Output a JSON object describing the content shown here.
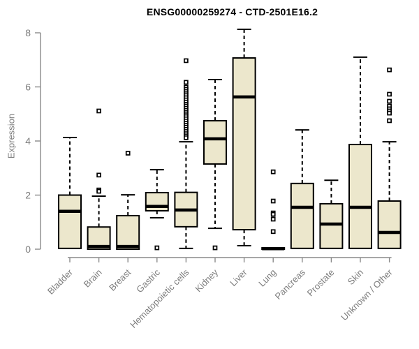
{
  "chart_data": {
    "type": "boxplot",
    "title": "ENSG00000259274 - CTD-2501E16.2",
    "ylabel": "Expression",
    "xlabel": "",
    "ylim": [
      0,
      8.3
    ],
    "yticks": [
      "0",
      "2",
      "4",
      "6",
      "8"
    ],
    "grid": false,
    "legend": "none",
    "box_fill": "#ECE7CC",
    "box_stroke": "#000000",
    "median_color": "#000000",
    "whisker_color": "#000000",
    "axis_color": "#8a8a8a",
    "label_color": "#7d7d7d",
    "title_color": "#000000",
    "categories": [
      "Bladder",
      "Brain",
      "Breast",
      "Gastric",
      "Hematopoietic cells",
      "Kidney",
      "Liver",
      "Lung",
      "Pancreas",
      "Prostate",
      "Skin",
      "Unknown / Other"
    ],
    "series": [
      {
        "name": "Bladder",
        "low": 0.03,
        "q1": 0.03,
        "median": 1.4,
        "q3": 2.0,
        "high": 4.13,
        "outliers": []
      },
      {
        "name": "Brain",
        "low": 0.0,
        "q1": 0.0,
        "median": 0.1,
        "q3": 0.82,
        "high": 1.96,
        "outliers": [
          5.11,
          2.74,
          2.19,
          2.14
        ]
      },
      {
        "name": "Breast",
        "low": 0.0,
        "q1": 0.0,
        "median": 0.1,
        "q3": 1.24,
        "high": 2.01,
        "outliers": [
          3.55
        ]
      },
      {
        "name": "Gastric",
        "low": 1.16,
        "q1": 1.42,
        "median": 1.58,
        "q3": 2.09,
        "high": 2.94,
        "outliers": [
          0.05
        ]
      },
      {
        "name": "Hematopoietic cells",
        "low": 0.03,
        "q1": 0.83,
        "median": 1.45,
        "q3": 2.1,
        "high": 3.97,
        "outliers": [
          6.97,
          6.17,
          5.99,
          5.91,
          5.83,
          5.75,
          5.68,
          5.6,
          5.52,
          5.44,
          5.36,
          5.29,
          5.21,
          5.13,
          5.05,
          4.97,
          4.9,
          4.82,
          4.74,
          4.66,
          4.58,
          4.51,
          4.43,
          4.35,
          4.27,
          4.19,
          4.12
        ]
      },
      {
        "name": "Kidney",
        "low": 0.77,
        "q1": 3.15,
        "median": 4.08,
        "q3": 4.75,
        "high": 6.27,
        "outliers": [
          0.05
        ]
      },
      {
        "name": "Liver",
        "low": 0.13,
        "q1": 0.72,
        "median": 5.63,
        "q3": 7.07,
        "high": 8.13,
        "outliers": []
      },
      {
        "name": "Lung",
        "low": 0.0,
        "q1": 0.0,
        "median": 0.02,
        "q3": 0.05,
        "high": 0.05,
        "outliers": [
          2.86,
          1.78,
          1.34,
          1.29,
          1.11,
          0.65
        ]
      },
      {
        "name": "Pancreas",
        "low": 0.03,
        "q1": 0.03,
        "median": 1.55,
        "q3": 2.43,
        "high": 4.41,
        "outliers": []
      },
      {
        "name": "Prostate",
        "low": 0.03,
        "q1": 0.03,
        "median": 0.93,
        "q3": 1.68,
        "high": 2.55,
        "outliers": []
      },
      {
        "name": "Skin",
        "low": 0.03,
        "q1": 0.03,
        "median": 1.55,
        "q3": 3.87,
        "high": 7.1,
        "outliers": []
      },
      {
        "name": "Unknown / Other",
        "low": 0.03,
        "q1": 0.03,
        "median": 0.62,
        "q3": 1.78,
        "high": 3.97,
        "outliers": [
          6.63,
          5.73,
          5.47,
          5.29,
          5.19,
          5.11,
          5.03,
          4.75
        ]
      }
    ]
  }
}
